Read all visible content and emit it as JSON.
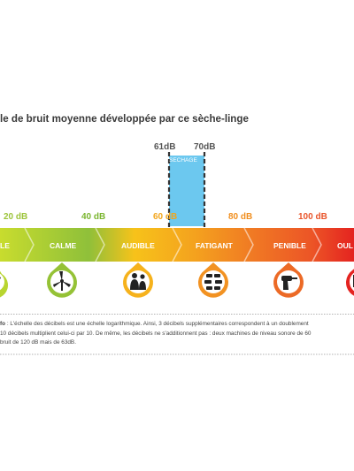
{
  "title": "le de bruit moyenne développée par ce sèche-linge",
  "highlight": {
    "low": "61dB",
    "high": "70dB",
    "label": "SECHAGE",
    "color": "#6cc8ef"
  },
  "scale_ticks": [
    {
      "label": "20 dB",
      "color": "#9cc43a"
    },
    {
      "label": "40 dB",
      "color": "#7ab52f"
    },
    {
      "label": "60 dB",
      "color": "#f2a51c"
    },
    {
      "label": "80 dB",
      "color": "#f08e1e"
    },
    {
      "label": "100 dB",
      "color": "#e9542a"
    }
  ],
  "levels": [
    {
      "label": "LE",
      "color": "#b8d530",
      "icon": "leaf-icon"
    },
    {
      "label": "CALME",
      "color": "#95c236",
      "icon": "wind-turbine-icon"
    },
    {
      "label": "AUDIBLE",
      "color": "#f6b21c",
      "icon": "conversation-icon"
    },
    {
      "label": "FATIGANT",
      "color": "#f29222",
      "icon": "traffic-cars-icon"
    },
    {
      "label": "PENIBLE",
      "color": "#ec6a26",
      "icon": "power-drill-icon"
    },
    {
      "label": "OUL",
      "color": "#e42320",
      "icon": "pain-icon"
    }
  ],
  "note": {
    "prefix": "fo",
    "line1": " : L'échelle des décibels est une échelle logarithmique. Ainsi, 3 décibels supplémentaires correspondent à un doublement",
    "line2": " 10 décibels multiplient celui-ci par 10. De même, les décibels ne s'additionnent pas : deux machines de niveau sonore de 60",
    "line3": "bruit de 120 dB mais de 63dB."
  }
}
